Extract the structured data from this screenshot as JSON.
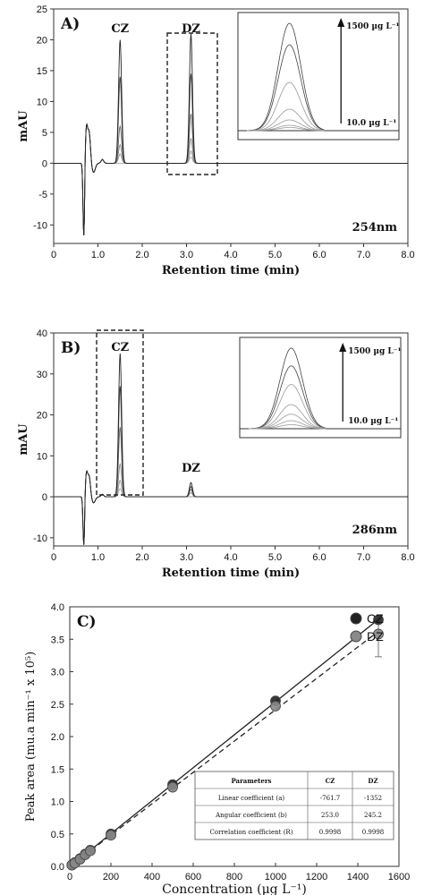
{
  "chart_data": [
    {
      "id": "A",
      "type": "line",
      "panel_label": "A)",
      "xlabel": "Retention time (min)",
      "ylabel": "mAU",
      "xlim": [
        0,
        8
      ],
      "ylim": [
        -13,
        25
      ],
      "xticks": [
        "0",
        "1.0",
        "2.0",
        "3.0",
        "4.0",
        "5.0",
        "6.0",
        "7.0",
        "8.0"
      ],
      "yticks": [
        "-10",
        "-5",
        "0",
        "5",
        "10",
        "15",
        "20",
        "25"
      ],
      "wavelength": "254nm",
      "peaks": [
        {
          "label": "CZ",
          "time": 1.5,
          "heights": [
            20,
            14,
            6,
            3,
            1.5
          ]
        },
        {
          "label": "DZ",
          "time": 3.1,
          "heights": [
            21,
            14.5,
            8,
            4,
            2,
            1
          ]
        }
      ],
      "inset": {
        "top_label": "1500 µg L⁻¹",
        "bottom_label": "10.0 µg L⁻¹"
      }
    },
    {
      "id": "B",
      "type": "line",
      "panel_label": "B)",
      "xlabel": "Retention time (min)",
      "ylabel": "mAU",
      "xlim": [
        0,
        8
      ],
      "ylim": [
        -12,
        40
      ],
      "xticks": [
        "0",
        "1.0",
        "2.0",
        "3.0",
        "4.0",
        "5.0",
        "6.0",
        "7.0",
        "8.0"
      ],
      "yticks": [
        "-10",
        "0",
        "10",
        "20",
        "30",
        "40"
      ],
      "wavelength": "286nm",
      "peaks": [
        {
          "label": "CZ",
          "time": 1.5,
          "heights": [
            35,
            27,
            17,
            8,
            4,
            2
          ]
        },
        {
          "label": "DZ",
          "time": 3.1,
          "heights": [
            3.5,
            2.5,
            1.8,
            1
          ]
        }
      ],
      "inset": {
        "top_label": "1500 µg L⁻¹",
        "bottom_label": "10.0 µg L⁻¹"
      }
    },
    {
      "id": "C",
      "type": "scatter",
      "panel_label": "C)",
      "xlabel": "Concentration (µg L⁻¹)",
      "ylabel": "Peak area (mu.a min⁻¹ x 10⁵)",
      "xlim": [
        0,
        1600
      ],
      "ylim": [
        0,
        4.0
      ],
      "xticks": [
        "0",
        "200",
        "400",
        "600",
        "800",
        "1000",
        "1200",
        "1400",
        "1600"
      ],
      "yticks": [
        "0.0",
        "0.5",
        "1.0",
        "1.5",
        "2.0",
        "2.5",
        "3.0",
        "3.5",
        "4.0"
      ],
      "series": [
        {
          "name": "CZ",
          "color": "#222222",
          "x": [
            10,
            25,
            50,
            75,
            100,
            200,
            500,
            1000,
            1500
          ],
          "y": [
            0.02,
            0.06,
            0.12,
            0.19,
            0.25,
            0.5,
            1.26,
            2.55,
            3.8
          ]
        },
        {
          "name": "DZ",
          "color": "#8a8a8a",
          "x": [
            10,
            25,
            50,
            75,
            100,
            200,
            500,
            1000,
            1500
          ],
          "y": [
            0.02,
            0.05,
            0.11,
            0.18,
            0.24,
            0.48,
            1.22,
            2.47,
            3.58
          ]
        }
      ],
      "table": {
        "headers": [
          "Parameters",
          "CZ",
          "DZ"
        ],
        "rows": [
          [
            "Linear coefficient (a)",
            "-761.7",
            "-1352"
          ],
          [
            "Angular coefficient (b)",
            "253.0",
            "245.2"
          ],
          [
            "Correlation coefficient (R)",
            "0.9998",
            "0.9998"
          ]
        ]
      }
    }
  ]
}
